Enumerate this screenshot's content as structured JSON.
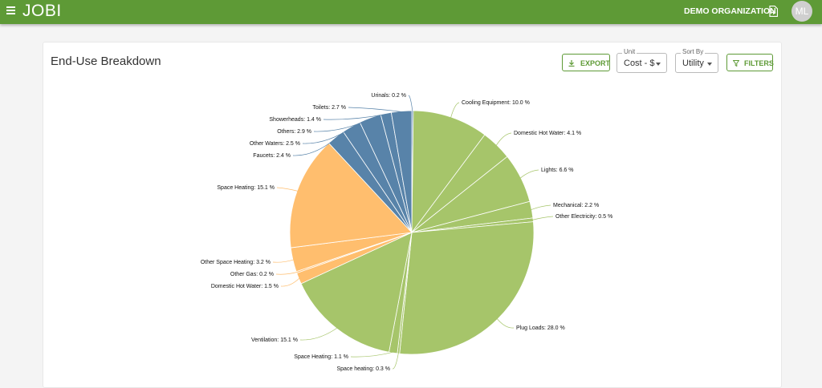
{
  "header": {
    "app_title": "JOBI",
    "organization": "DEMO ORGANIZATION",
    "avatar_initials": "ML"
  },
  "card": {
    "title": "End-Use Breakdown",
    "export_label": "EXPORT",
    "unit": {
      "label": "Unit",
      "value": "Cost - $"
    },
    "sort": {
      "label": "Sort By",
      "value": "Utility"
    },
    "filters_label": "FILTERS"
  },
  "colors": {
    "electric": "#a6c56a",
    "gas": "#ffbe6e",
    "water": "#5883a9",
    "brand": "#5e9a36"
  },
  "chart_data": {
    "type": "pie",
    "unit_shown": "%",
    "slices": [
      {
        "label": "Urinals",
        "value": 0.2,
        "group": "water"
      },
      {
        "label": "Cooling Equipment",
        "value": 10.0,
        "group": "electric"
      },
      {
        "label": "Domestic Hot Water",
        "value": 4.1,
        "group": "electric"
      },
      {
        "label": "Lights",
        "value": 6.6,
        "group": "electric"
      },
      {
        "label": "Mechanical",
        "value": 2.2,
        "group": "electric"
      },
      {
        "label": "Other Electricity",
        "value": 0.5,
        "group": "electric"
      },
      {
        "label": "Plug Loads",
        "value": 28.0,
        "group": "electric"
      },
      {
        "label": "Space heating",
        "value": 0.3,
        "group": "electric"
      },
      {
        "label": "Space Heating",
        "value": 1.1,
        "group": "electric"
      },
      {
        "label": "Ventilation",
        "value": 15.1,
        "group": "electric"
      },
      {
        "label": "Domestic Hot Water",
        "value": 1.5,
        "group": "gas"
      },
      {
        "label": "Other Gas",
        "value": 0.2,
        "group": "gas"
      },
      {
        "label": "Other Space Heating",
        "value": 3.2,
        "group": "gas"
      },
      {
        "label": "Space Heating",
        "value": 15.1,
        "group": "gas"
      },
      {
        "label": "Faucets",
        "value": 2.4,
        "group": "water"
      },
      {
        "label": "Other Waters",
        "value": 2.5,
        "group": "water"
      },
      {
        "label": "Others",
        "value": 2.9,
        "group": "water"
      },
      {
        "label": "Showerheads",
        "value": 1.4,
        "group": "water"
      },
      {
        "label": "Toilets",
        "value": 2.7,
        "group": "water"
      }
    ]
  }
}
